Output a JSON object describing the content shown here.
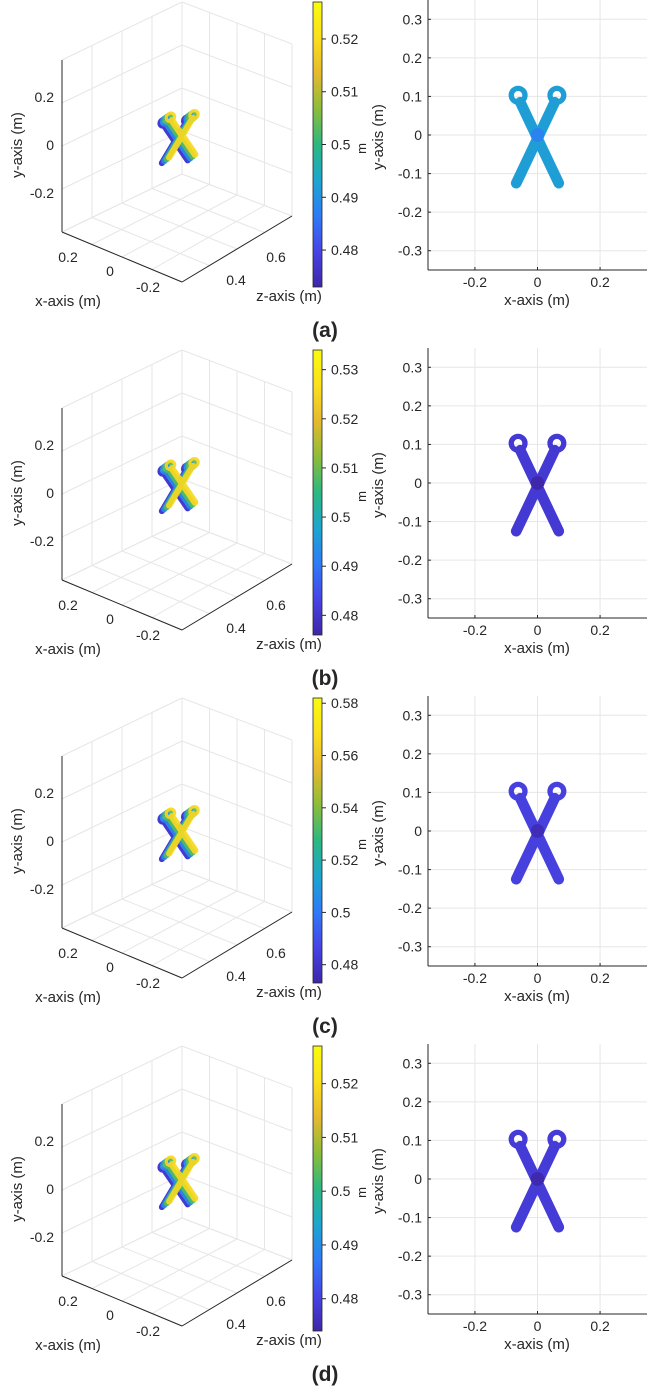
{
  "panels": [
    {
      "label": "(a)"
    },
    {
      "label": "(b)"
    },
    {
      "label": "(c)"
    },
    {
      "label": "(d)"
    }
  ],
  "colors": {
    "grid": "#e6e6e6",
    "axis": "#262626",
    "colormap": [
      "#3e26a8",
      "#4743e6",
      "#2e7bf7",
      "#1ba6cf",
      "#2cb880",
      "#8bbd39",
      "#e6b92e",
      "#fbe01d",
      "#f9fb0e"
    ]
  },
  "chart_data": [
    {
      "panel": "(a)",
      "type": "surface-3d",
      "xlabel": "x-axis (m)",
      "ylabel": "y-axis (m)",
      "zlabel": "z-axis (m)",
      "x_ticks": [
        "0.2",
        "0",
        "-0.2"
      ],
      "y_ticks": [
        "0.2",
        "0",
        "-0.2"
      ],
      "z_ticks": [
        "0.4",
        "0.6"
      ],
      "colorbar": {
        "label": "m",
        "ticks": [
          0.48,
          0.49,
          0.5,
          0.51,
          0.52
        ],
        "range": [
          0.473,
          0.527
        ]
      },
      "grid": true
    },
    {
      "panel": "(a)",
      "type": "surface-2d",
      "xlabel": "x-axis (m)",
      "ylabel": "y-axis (m)",
      "x_ticks": [
        -0.2,
        0,
        0.2
      ],
      "y_ticks": [
        0.3,
        0.2,
        0.1,
        0,
        -0.1,
        -0.2,
        -0.3
      ],
      "xlim": [
        -0.35,
        0.35
      ],
      "ylim": [
        -0.35,
        0.35
      ],
      "grid": true,
      "dominant_value": 0.492
    },
    {
      "panel": "(b)",
      "type": "surface-3d",
      "xlabel": "x-axis (m)",
      "ylabel": "y-axis (m)",
      "zlabel": "z-axis (m)",
      "x_ticks": [
        "0.2",
        "0",
        "-0.2"
      ],
      "y_ticks": [
        "0.2",
        "0",
        "-0.2"
      ],
      "z_ticks": [
        "0.4",
        "0.6"
      ],
      "colorbar": {
        "label": "m",
        "ticks": [
          0.48,
          0.49,
          0.5,
          0.51,
          0.52,
          0.53
        ],
        "range": [
          0.476,
          0.534
        ]
      },
      "grid": true
    },
    {
      "panel": "(b)",
      "type": "surface-2d",
      "xlabel": "x-axis (m)",
      "ylabel": "y-axis (m)",
      "x_ticks": [
        -0.2,
        0,
        0.2
      ],
      "y_ticks": [
        0.3,
        0.2,
        0.1,
        0,
        -0.1,
        -0.2,
        -0.3
      ],
      "xlim": [
        -0.35,
        0.35
      ],
      "ylim": [
        -0.35,
        0.35
      ],
      "grid": true,
      "dominant_value": 0.481
    },
    {
      "panel": "(c)",
      "type": "surface-3d",
      "xlabel": "x-axis (m)",
      "ylabel": "y-axis (m)",
      "zlabel": "z-axis (m)",
      "x_ticks": [
        "0.2",
        "0",
        "-0.2"
      ],
      "y_ticks": [
        "0.2",
        "0",
        "-0.2"
      ],
      "z_ticks": [
        "0.4",
        "0.6"
      ],
      "colorbar": {
        "label": "m",
        "ticks": [
          0.48,
          0.5,
          0.52,
          0.54,
          0.56,
          0.58
        ],
        "range": [
          0.473,
          0.582
        ]
      },
      "grid": true
    },
    {
      "panel": "(c)",
      "type": "surface-2d",
      "xlabel": "x-axis (m)",
      "ylabel": "y-axis (m)",
      "x_ticks": [
        -0.2,
        0,
        0.2
      ],
      "y_ticks": [
        0.3,
        0.2,
        0.1,
        0,
        -0.1,
        -0.2,
        -0.3
      ],
      "xlim": [
        -0.35,
        0.35
      ],
      "ylim": [
        -0.35,
        0.35
      ],
      "grid": true,
      "dominant_value": 0.485
    },
    {
      "panel": "(d)",
      "type": "surface-3d",
      "xlabel": "x-axis (m)",
      "ylabel": "y-axis (m)",
      "zlabel": "z-axis (m)",
      "x_ticks": [
        "0.2",
        "0",
        "-0.2"
      ],
      "y_ticks": [
        "0.2",
        "0",
        "-0.2"
      ],
      "z_ticks": [
        "0.4",
        "0.6"
      ],
      "colorbar": {
        "label": "m",
        "ticks": [
          0.48,
          0.49,
          0.5,
          0.51,
          0.52
        ],
        "range": [
          0.474,
          0.527
        ]
      },
      "grid": true
    },
    {
      "panel": "(d)",
      "type": "surface-2d",
      "xlabel": "x-axis (m)",
      "ylabel": "y-axis (m)",
      "x_ticks": [
        -0.2,
        0,
        0.2
      ],
      "y_ticks": [
        0.3,
        0.2,
        0.1,
        0,
        -0.1,
        -0.2,
        -0.3
      ],
      "xlim": [
        -0.35,
        0.35
      ],
      "ylim": [
        -0.35,
        0.35
      ],
      "grid": true,
      "dominant_value": 0.479
    }
  ]
}
